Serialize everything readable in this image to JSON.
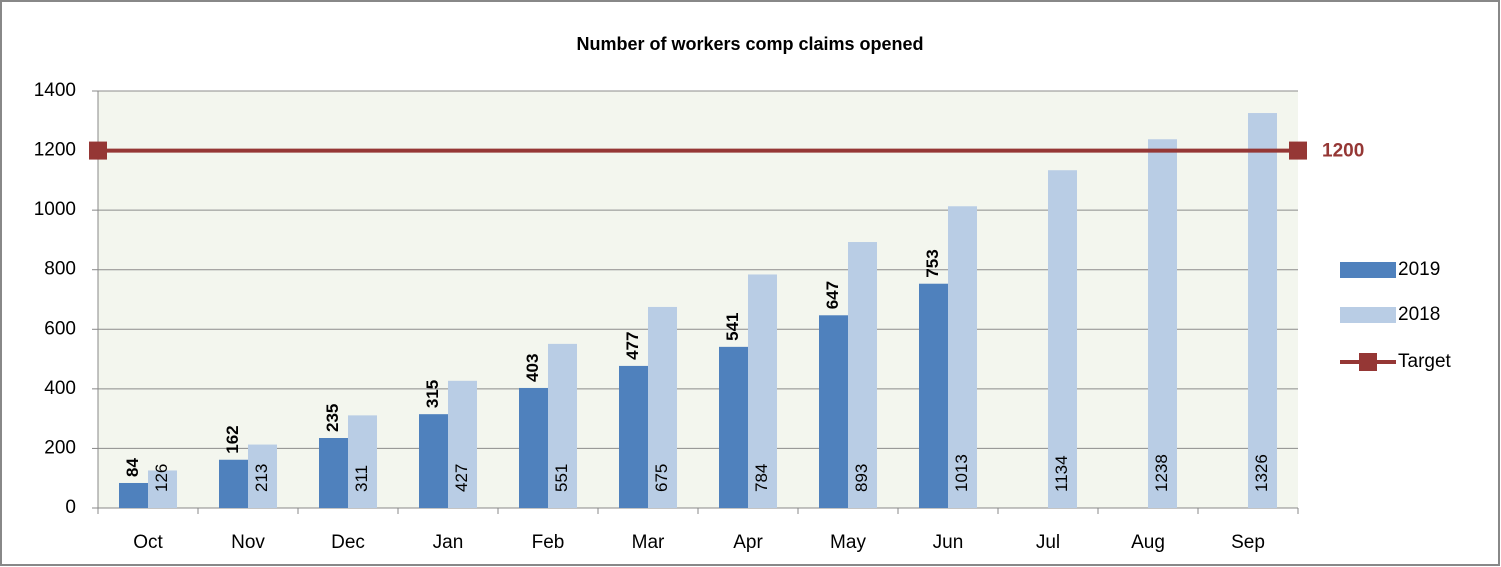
{
  "chart_data": {
    "type": "bar",
    "title": "Number of workers comp claims opened",
    "categories": [
      "Oct",
      "Nov",
      "Dec",
      "Jan",
      "Feb",
      "Mar",
      "Apr",
      "May",
      "Jun",
      "Jul",
      "Aug",
      "Sep"
    ],
    "series": [
      {
        "name": "2019",
        "color": "#4f81bd",
        "values": [
          84,
          162,
          235,
          315,
          403,
          477,
          541,
          647,
          753,
          null,
          null,
          null
        ]
      },
      {
        "name": "2018",
        "color": "#b9cde5",
        "values": [
          126,
          213,
          311,
          427,
          551,
          675,
          784,
          893,
          1013,
          1134,
          1238,
          1326
        ]
      }
    ],
    "target": {
      "name": "Target",
      "value": 1200,
      "color": "#953735"
    },
    "ylim": [
      0,
      1400
    ],
    "yticks": [
      0,
      200,
      400,
      600,
      800,
      1000,
      1200,
      1400
    ],
    "grid": true,
    "legend": "right"
  }
}
